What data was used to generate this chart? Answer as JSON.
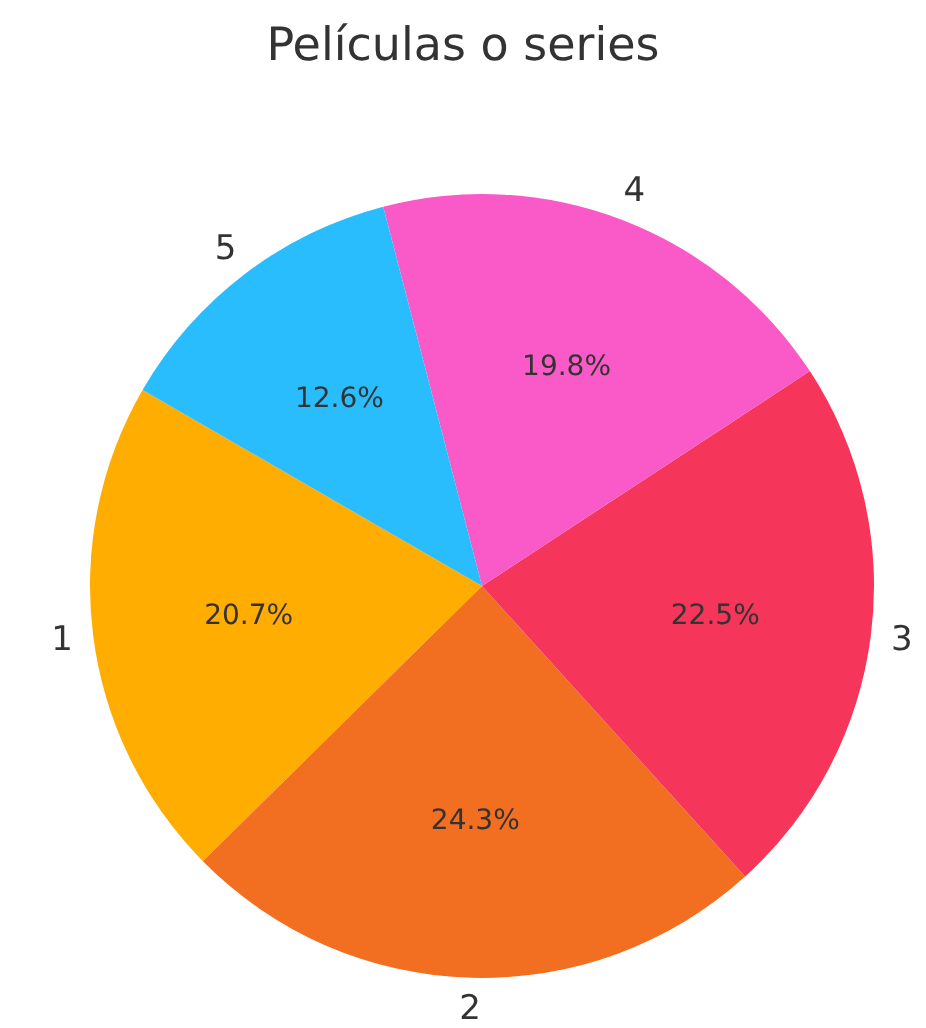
{
  "chart_data": {
    "type": "pie",
    "title": "Películas o series",
    "categories": [
      "1",
      "2",
      "3",
      "4",
      "5"
    ],
    "values": [
      20.7,
      24.3,
      22.5,
      19.8,
      12.6
    ],
    "value_labels": [
      "20.7%",
      "24.3%",
      "22.5%",
      "19.8%",
      "12.6%"
    ],
    "colors": [
      "#ffad00",
      "#f26f22",
      "#f5355a",
      "#f95ac8",
      "#29bdfd"
    ]
  }
}
